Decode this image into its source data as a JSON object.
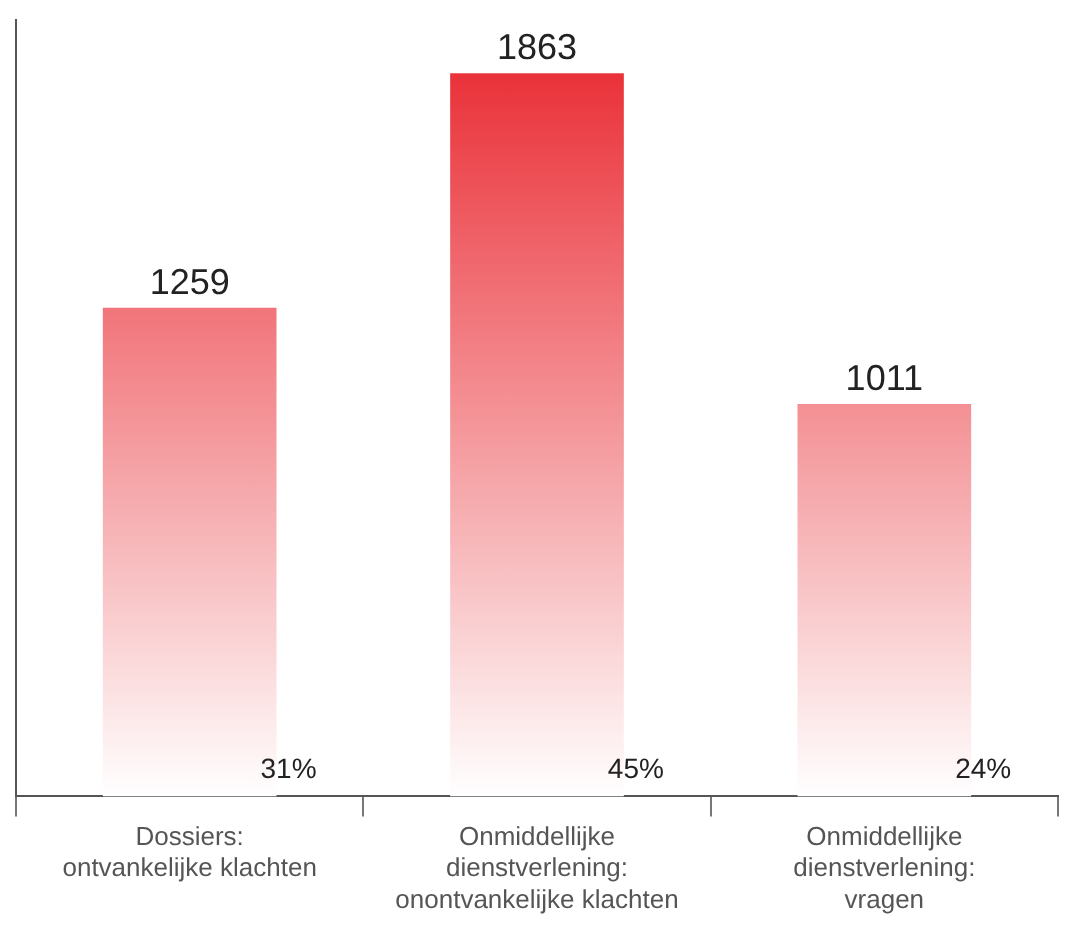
{
  "chart_data": {
    "type": "bar",
    "categories": [
      "Dossiers:\nontvankelijke klachten",
      "Onmiddellijke\ndienstverlening:\nonontvankelijke klachten",
      "Onmiddellijke\ndienstverlening:\nvragen"
    ],
    "values": [
      1259,
      1863,
      1011
    ],
    "color": "#e8232b",
    "data_labels": true,
    "grid": false,
    "legend": false,
    "annotations": [
      {
        "text": "31%",
        "x": "Dossiers:\nontvankelijke klachten",
        "y": 0
      },
      {
        "text": "45%",
        "x": "Onmiddellijke\ndienstverlening:\nonontvankelijke klachten",
        "y": 0
      },
      {
        "text": "24%",
        "x": "Onmiddellijke\ndienstverlening:\nvragen",
        "y": 0
      }
    ]
  }
}
